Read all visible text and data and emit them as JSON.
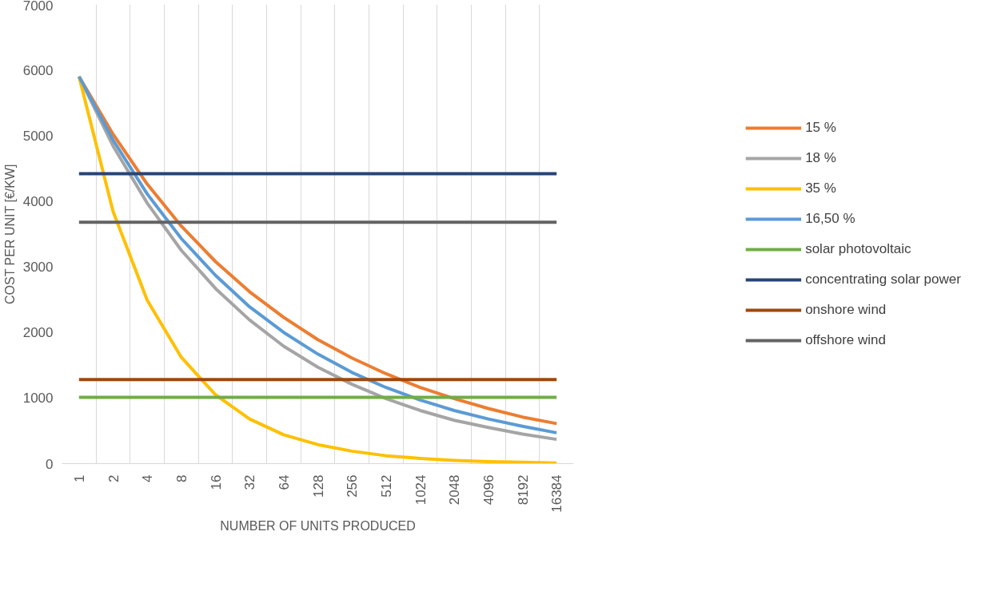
{
  "chart_data": {
    "type": "line",
    "xlabel": "NUMBER OF UNITS PRODUCED",
    "ylabel": "COST PER UNIT [€/KW]",
    "categories": [
      "1",
      "2",
      "4",
      "8",
      "16",
      "32",
      "64",
      "128",
      "256",
      "512",
      "1024",
      "2048",
      "4096",
      "8192",
      "16384"
    ],
    "ylim": [
      0,
      7000
    ],
    "yticks": [
      0,
      1000,
      2000,
      3000,
      4000,
      5000,
      6000,
      7000
    ],
    "grid": "x",
    "legend": "right",
    "marker": "none",
    "line_style": "solid",
    "series": [
      {
        "name": "15 %",
        "color": "#ed7d31",
        "values": [
          5900,
          5020,
          4260,
          3620,
          3080,
          2620,
          2230,
          1890,
          1610,
          1370,
          1160,
          990,
          840,
          710,
          610
        ]
      },
      {
        "name": "18 %",
        "color": "#a5a5a5",
        "values": [
          5900,
          4840,
          3970,
          3250,
          2670,
          2190,
          1790,
          1470,
          1210,
          990,
          810,
          660,
          550,
          450,
          370
        ]
      },
      {
        "name": "35 %",
        "color": "#ffc000",
        "values": [
          5900,
          3840,
          2490,
          1620,
          1050,
          680,
          440,
          290,
          190,
          120,
          80,
          50,
          30,
          20,
          10
        ]
      },
      {
        "name": "16,50 %",
        "color": "#5b9bd5",
        "values": [
          5900,
          4930,
          4110,
          3430,
          2870,
          2390,
          2000,
          1670,
          1390,
          1160,
          970,
          810,
          680,
          570,
          470
        ]
      },
      {
        "name": "solar photovoltaic",
        "color": "#70ad47",
        "values": [
          1010,
          1010,
          1010,
          1010,
          1010,
          1010,
          1010,
          1010,
          1010,
          1010,
          1010,
          1010,
          1010,
          1010,
          1010
        ]
      },
      {
        "name": "concentrating solar power",
        "color": "#264478",
        "values": [
          4420,
          4420,
          4420,
          4420,
          4420,
          4420,
          4420,
          4420,
          4420,
          4420,
          4420,
          4420,
          4420,
          4420,
          4420
        ]
      },
      {
        "name": "onshore wind",
        "color": "#9e480e",
        "values": [
          1280,
          1280,
          1280,
          1280,
          1280,
          1280,
          1280,
          1280,
          1280,
          1280,
          1280,
          1280,
          1280,
          1280,
          1280
        ]
      },
      {
        "name": "offshore wind",
        "color": "#636363",
        "values": [
          3680,
          3680,
          3680,
          3680,
          3680,
          3680,
          3680,
          3680,
          3680,
          3680,
          3680,
          3680,
          3680,
          3680,
          3680
        ]
      }
    ]
  }
}
